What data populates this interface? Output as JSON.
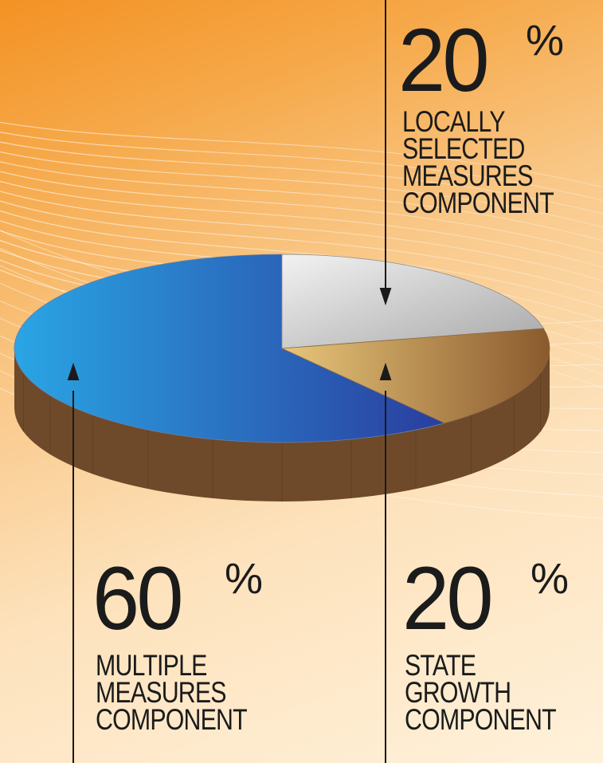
{
  "chart_data": {
    "type": "pie",
    "slices": [
      {
        "value": 60,
        "percent_text": "60",
        "percent_sign": "%",
        "label_lines": [
          "MULTIPLE",
          "MEASURES",
          "COMPONENT"
        ],
        "color_light": "#2aa5e4",
        "color_dark": "#2a3d9e"
      },
      {
        "value": 20,
        "percent_text": "20",
        "percent_sign": "%",
        "label_lines": [
          "LOCALLY",
          "SELECTED",
          "MEASURES",
          "COMPONENT"
        ],
        "color_light": "#f2f2f2",
        "color_dark": "#a8a8a8"
      },
      {
        "value": 20,
        "percent_text": "20",
        "percent_sign": "%",
        "label_lines": [
          "STATE",
          "GROWTH",
          "COMPONENT"
        ],
        "color_light": "#e8c67a",
        "color_dark": "#8a5a2e"
      }
    ],
    "side_color": "#6e4a2a"
  }
}
